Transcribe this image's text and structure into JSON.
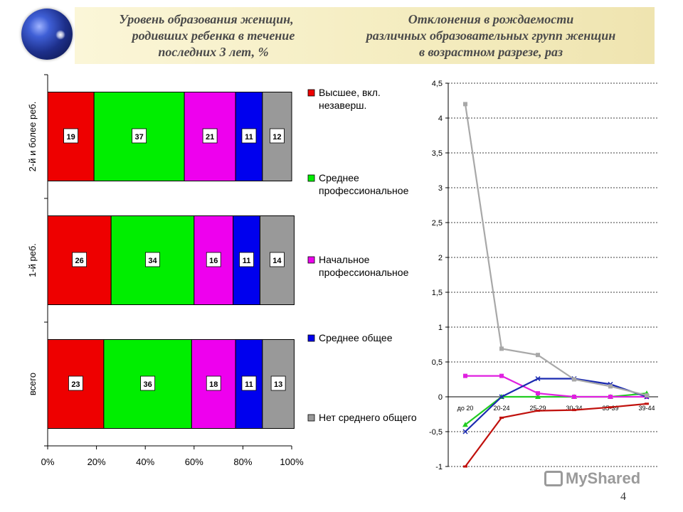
{
  "header": {
    "left_title": [
      "Уровень образования женщин,",
      "родивших ребенка в течение",
      "последних 3 лет, %"
    ],
    "right_title": [
      "Отклонения в рождаемости",
      "различных образовательных групп женщин",
      "в возрастном разрезе, раз"
    ]
  },
  "page_number": "4",
  "watermark": "MyShared",
  "chart_data": [
    {
      "type": "bar",
      "orientation": "horizontal",
      "stacked": "percent",
      "categories": [
        "2-й и более реб.",
        "1-й реб.",
        "всего"
      ],
      "series": [
        {
          "name": "Высшее, вкл. незаверш.",
          "color": "#ee0000",
          "values": [
            19,
            26,
            23
          ]
        },
        {
          "name": "Среднее профессиональное",
          "color": "#00ee00",
          "values": [
            37,
            34,
            36
          ]
        },
        {
          "name": "Начальное профессиональное",
          "color": "#ee00ee",
          "values": [
            21,
            16,
            18
          ]
        },
        {
          "name": "Среднее общее",
          "color": "#0000ee",
          "values": [
            11,
            11,
            11
          ]
        },
        {
          "name": "Нет среднего общего",
          "color": "#999999",
          "values": [
            12,
            14,
            13
          ]
        }
      ],
      "xticks": [
        "0%",
        "20%",
        "40%",
        "60%",
        "80%",
        "100%"
      ],
      "xlim": [
        0,
        100
      ],
      "legend": "right"
    },
    {
      "type": "line",
      "categories": [
        "до 20",
        "20-24",
        "25-29",
        "30-34",
        "35-39",
        "39-44"
      ],
      "ylim": [
        -1,
        4.5
      ],
      "yticks": [
        "-1",
        "-0,5",
        "0",
        "0,5",
        "1",
        "1,5",
        "2",
        "2,5",
        "3",
        "3,5",
        "4",
        "4,5"
      ],
      "grid": true,
      "series": [
        {
          "color": "#c0100c",
          "marker": "dash",
          "values": [
            -1.0,
            -0.3,
            -0.2,
            -0.19,
            -0.15,
            -0.1
          ]
        },
        {
          "color": "#22cc22",
          "marker": "triangle",
          "values": [
            -0.4,
            0.0,
            0.0,
            0.0,
            0.0,
            0.05
          ]
        },
        {
          "color": "#e020e0",
          "marker": "square",
          "values": [
            0.3,
            0.3,
            0.05,
            0.0,
            0.0,
            0.0
          ]
        },
        {
          "color": "#1a2ab0",
          "marker": "x",
          "values": [
            -0.5,
            0.0,
            0.26,
            0.26,
            0.18,
            0.0
          ]
        },
        {
          "color": "#a8a8a8",
          "marker": "square",
          "values": [
            4.2,
            0.69,
            0.6,
            0.25,
            0.15,
            0.02
          ]
        }
      ]
    }
  ]
}
